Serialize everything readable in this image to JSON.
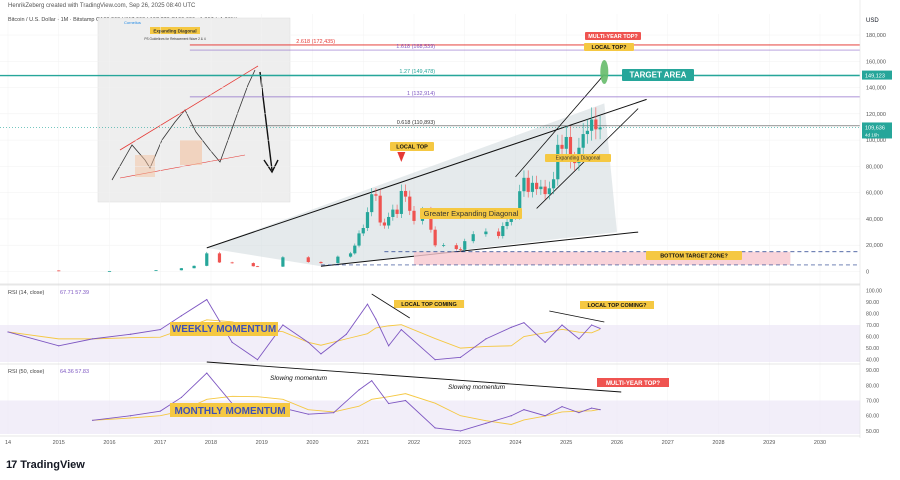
{
  "header": {
    "credit": "HenrikZeberg created with TradingView.com, Sep 26, 2025 08:40 UTC",
    "symbol_line": "Bitcoin / U.S. Dollar · 1M · Bitstamp  O108,268  H117,968  L107,270  C109,636  +1,367 (+1.26%)"
  },
  "footer": {
    "brand": "TradingView",
    "logo_glyph": "17"
  },
  "inset": {
    "brand": "Cornelius",
    "title": "Expanding Diagonal",
    "subtitle": "PS Guidelines for Retracement Wave 2 & 4"
  },
  "colors": {
    "price_axis_currency": "#131722",
    "up_candle": "#26a69a",
    "down_candle": "#ef5350",
    "rsi_line": "#7e57c2",
    "rsi_ma": "#f5c842",
    "target_area": "#26a69a",
    "fib_red": "#e53935",
    "fib_purple": "#7e57c2",
    "bottom_zone": "#f8c8d0"
  },
  "chart_data": [
    {
      "type": "candlestick",
      "title": "",
      "currency": "USD",
      "x_ticks": [
        "14",
        "2015",
        "2016",
        "2017",
        "2018",
        "2019",
        "2020",
        "2021",
        "2022",
        "2023",
        "2024",
        "2025",
        "2026",
        "2027",
        "2028",
        "2029",
        "2030"
      ],
      "y_ticks": [
        0,
        20000,
        40000,
        60000,
        80000,
        100000,
        120000,
        140000,
        160000,
        180000
      ],
      "y_tick_labels": [
        "0",
        "20,000",
        "40,000",
        "60,000",
        "80,000",
        "100,000",
        "120,000",
        "140,000",
        "160,000",
        "180,000"
      ],
      "ylim": [
        -8000,
        196000
      ],
      "price_labels": [
        {
          "value": 149123,
          "text": "149,123",
          "color": "#26a69a"
        },
        {
          "value": 109636,
          "text": "109,636",
          "sub": "4d 16h",
          "color": "#26a69a"
        }
      ],
      "fib_levels": [
        {
          "text": "2.618 (172,435)",
          "value": 172435,
          "color": "#e53935"
        },
        {
          "text": "1.618 (168,539)",
          "value": 168539,
          "color": "#7e57c2"
        },
        {
          "text": "1.27 (149,478)",
          "value": 149478,
          "color": "#26a69a"
        },
        {
          "text": "1 (132,914)",
          "value": 132914,
          "color": "#7e57c2"
        },
        {
          "text": "0.618 (110,893)",
          "value": 110893,
          "color": "#333333"
        }
      ],
      "annotations": [
        {
          "text": "MULTI-YEAR TOP?",
          "kind": "red-box"
        },
        {
          "text": "LOCAL TOP?",
          "kind": "yellow-box"
        },
        {
          "text": "TARGET AREA",
          "kind": "teal-box"
        },
        {
          "text": "LOCAL TOP",
          "kind": "yellow-box"
        },
        {
          "text": "Greater Expanding Diagonal",
          "kind": "yellow-text"
        },
        {
          "text": "Expanding Diagonal",
          "kind": "yellow-text"
        },
        {
          "text": "BOTTOM TARGET ZONE?",
          "kind": "yellow-box"
        }
      ],
      "series": [
        {
          "date": "2014-01",
          "close": 800
        },
        {
          "date": "2015-01",
          "close": 220
        },
        {
          "date": "2016-01",
          "close": 370
        },
        {
          "date": "2016-12",
          "close": 960
        },
        {
          "date": "2017-06",
          "close": 2500
        },
        {
          "date": "2017-09",
          "close": 4300
        },
        {
          "date": "2017-12",
          "close": 13800
        },
        {
          "date": "2018-03",
          "close": 6900
        },
        {
          "date": "2018-06",
          "close": 6400
        },
        {
          "date": "2018-11",
          "close": 4000
        },
        {
          "date": "2018-12",
          "close": 3700
        },
        {
          "date": "2019-06",
          "close": 10800
        },
        {
          "date": "2019-12",
          "close": 7200
        },
        {
          "date": "2020-03",
          "close": 6400
        },
        {
          "date": "2020-07",
          "close": 11300
        },
        {
          "date": "2020-10",
          "close": 13800
        },
        {
          "date": "2020-11",
          "close": 19700
        },
        {
          "date": "2020-12",
          "close": 29000
        },
        {
          "date": "2021-01",
          "close": 33100
        },
        {
          "date": "2021-02",
          "close": 45200
        },
        {
          "date": "2021-03",
          "close": 58800
        },
        {
          "date": "2021-04",
          "close": 57700
        },
        {
          "date": "2021-05",
          "close": 37300
        },
        {
          "date": "2021-06",
          "close": 35000
        },
        {
          "date": "2021-07",
          "close": 41500
        },
        {
          "date": "2021-08",
          "close": 47100
        },
        {
          "date": "2021-09",
          "close": 43800
        },
        {
          "date": "2021-10",
          "close": 61300
        },
        {
          "date": "2021-11",
          "close": 57000
        },
        {
          "date": "2021-12",
          "close": 46200
        },
        {
          "date": "2022-01",
          "close": 38500
        },
        {
          "date": "2022-03",
          "close": 45500
        },
        {
          "date": "2022-05",
          "close": 31800
        },
        {
          "date": "2022-06",
          "close": 19900
        },
        {
          "date": "2022-08",
          "close": 20000
        },
        {
          "date": "2022-11",
          "close": 17100
        },
        {
          "date": "2022-12",
          "close": 16500
        },
        {
          "date": "2023-01",
          "close": 23100
        },
        {
          "date": "2023-03",
          "close": 28400
        },
        {
          "date": "2023-06",
          "close": 30400
        },
        {
          "date": "2023-09",
          "close": 27000
        },
        {
          "date": "2023-10",
          "close": 34600
        },
        {
          "date": "2023-11",
          "close": 37700
        },
        {
          "date": "2023-12",
          "close": 42300
        },
        {
          "date": "2024-01",
          "close": 42500
        },
        {
          "date": "2024-02",
          "close": 61100
        },
        {
          "date": "2024-03",
          "close": 71300
        },
        {
          "date": "2024-04",
          "close": 60600
        },
        {
          "date": "2024-05",
          "close": 67500
        },
        {
          "date": "2024-06",
          "close": 62700
        },
        {
          "date": "2024-07",
          "close": 64600
        },
        {
          "date": "2024-08",
          "close": 58900
        },
        {
          "date": "2024-09",
          "close": 63300
        },
        {
          "date": "2024-10",
          "close": 70200
        },
        {
          "date": "2024-11",
          "close": 96400
        },
        {
          "date": "2024-12",
          "close": 93400
        },
        {
          "date": "2025-01",
          "close": 102400
        },
        {
          "date": "2025-02",
          "close": 84300
        },
        {
          "date": "2025-03",
          "close": 82500
        },
        {
          "date": "2025-04",
          "close": 94200
        },
        {
          "date": "2025-05",
          "close": 104600
        },
        {
          "date": "2025-06",
          "close": 107100
        },
        {
          "date": "2025-07",
          "close": 115700
        },
        {
          "date": "2025-08",
          "close": 108200
        },
        {
          "date": "2025-09",
          "close": 109636
        }
      ]
    },
    {
      "type": "line",
      "title": "RSI (14, close)",
      "values_text": "67.71  57.39",
      "label": "WEEKLY MOMENTUM",
      "y_ticks": [
        40,
        50,
        60,
        70,
        80,
        90,
        100
      ],
      "y_tick_labels": [
        "40.00",
        "50.00",
        "60.00",
        "70.00",
        "80.00",
        "90.00",
        "100.00"
      ],
      "ylim": [
        38,
        102
      ],
      "band": [
        30,
        70
      ],
      "annotations": [
        "LOCAL TOP COMING",
        "LOCAL TOP COMING?"
      ],
      "x": [
        "2014-01",
        "2015-01",
        "2015-09",
        "2016-06",
        "2017-01",
        "2017-06",
        "2017-12",
        "2018-06",
        "2018-12",
        "2019-06",
        "2019-12",
        "2020-03",
        "2020-09",
        "2021-02",
        "2021-04",
        "2021-07",
        "2021-10",
        "2022-06",
        "2022-12",
        "2023-06",
        "2023-12",
        "2024-03",
        "2024-08",
        "2024-12",
        "2025-04",
        "2025-07",
        "2025-09"
      ],
      "y": [
        64,
        52,
        58,
        62,
        66,
        78,
        92,
        55,
        40,
        70,
        55,
        45,
        62,
        88,
        75,
        52,
        66,
        40,
        42,
        58,
        68,
        72,
        55,
        70,
        58,
        70,
        67
      ]
    },
    {
      "type": "line",
      "title": "RSI (50, close)",
      "values_text": "64.36  57.83",
      "label": "MONTHLY MOMENTUM",
      "y_ticks": [
        50,
        60,
        70,
        80,
        90
      ],
      "y_tick_labels": [
        "50.00",
        "60.00",
        "70.00",
        "80.00",
        "90.00"
      ],
      "ylim": [
        48,
        92
      ],
      "band": [
        30,
        70
      ],
      "annotations": [
        "Slowing momentum",
        "Slowing momentum",
        "MULTI-YEAR TOP?"
      ],
      "x": [
        "2015-09",
        "2016-06",
        "2017-01",
        "2017-06",
        "2017-12",
        "2018-06",
        "2018-12",
        "2019-06",
        "2019-12",
        "2020-06",
        "2020-12",
        "2021-03",
        "2021-07",
        "2021-11",
        "2022-06",
        "2022-12",
        "2023-06",
        "2023-12",
        "2024-03",
        "2024-08",
        "2024-12",
        "2025-04",
        "2025-07",
        "2025-09"
      ],
      "y": [
        57,
        60,
        63,
        72,
        88,
        68,
        62,
        65,
        61,
        62,
        77,
        83,
        68,
        70,
        52,
        50,
        55,
        60,
        64,
        60,
        66,
        62,
        65,
        64
      ]
    }
  ]
}
